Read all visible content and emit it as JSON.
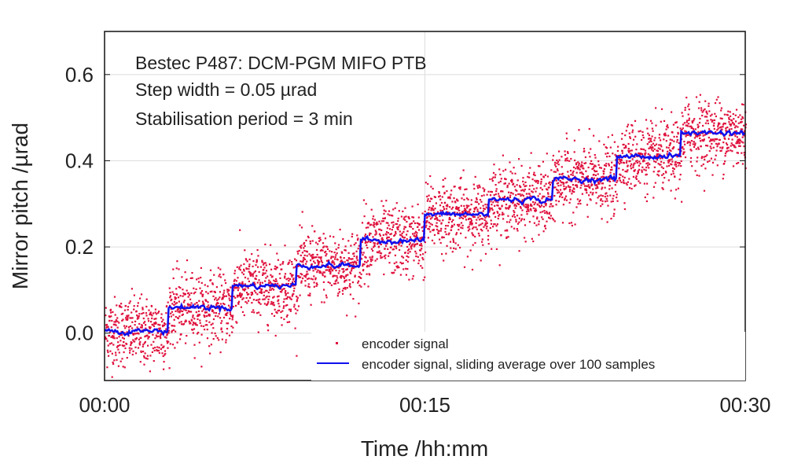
{
  "chart_data": {
    "type": "scatter",
    "title_lines": [
      "Bestec P487: DCM-PGM MIFO PTB",
      "Step width = 0.05 µrad",
      "Stabilisation period = 3 min"
    ],
    "xlabel": "Time /hh:mm",
    "ylabel": "Mirror pitch /µrad",
    "xlim_min": [
      0,
      30
    ],
    "ylim": [
      -0.11,
      0.7
    ],
    "xticks": [
      {
        "v": 0,
        "label": "00:00"
      },
      {
        "v": 15,
        "label": "00:15"
      },
      {
        "v": 30,
        "label": "00:30"
      }
    ],
    "yticks": [
      {
        "v": 0,
        "label": "0.0"
      },
      {
        "v": 0.2,
        "label": "0.2"
      },
      {
        "v": 0.4,
        "label": "0.4"
      },
      {
        "v": 0.6,
        "label": "0.6"
      }
    ],
    "grid": true,
    "legend_placement": "bottom-right",
    "series": [
      {
        "name": "encoder signal",
        "kind": "points",
        "color": "#e0103c",
        "noise_std_urad": 0.04
      },
      {
        "name": "encoder signal, sliding average over 100 samples",
        "kind": "line",
        "color": "#1010ee"
      }
    ],
    "step_period_min": 3,
    "step_levels_urad": [
      0.005,
      0.06,
      0.11,
      0.157,
      0.215,
      0.275,
      0.31,
      0.357,
      0.41,
      0.465
    ]
  }
}
